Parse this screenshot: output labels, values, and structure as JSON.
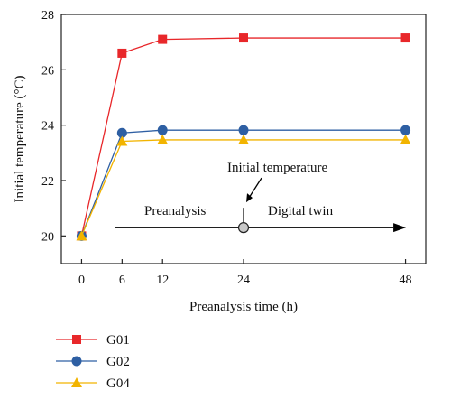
{
  "chart_data": {
    "type": "line",
    "xlabel": "Preanalysis time (h)",
    "ylabel": "Initial temperature (°C)",
    "xlim": [
      -3,
      51
    ],
    "ylim": [
      19,
      28
    ],
    "x": [
      0,
      6,
      12,
      24,
      48
    ],
    "xticks": [
      0,
      6,
      12,
      24,
      48
    ],
    "yticks": [
      20,
      22,
      24,
      26,
      28
    ],
    "grid": false,
    "legend": "below-left",
    "series": [
      {
        "name": "G01",
        "color": "#e8272a",
        "marker": "square",
        "values": [
          20.0,
          26.6,
          27.1,
          27.15,
          27.15
        ]
      },
      {
        "name": "G02",
        "color": "#2e5fa3",
        "marker": "circle",
        "values": [
          20.0,
          23.72,
          23.82,
          23.82,
          23.82
        ]
      },
      {
        "name": "G04",
        "color": "#f2b400",
        "marker": "triangle",
        "values": [
          20.0,
          23.42,
          23.47,
          23.47,
          23.47
        ]
      }
    ],
    "annotations": {
      "arrow_left_label": "Preanalysis",
      "arrow_right_label": "Digital twin",
      "callout_label": "Initial temperature",
      "arrow_y": 20.3,
      "marker_x": 24
    }
  }
}
